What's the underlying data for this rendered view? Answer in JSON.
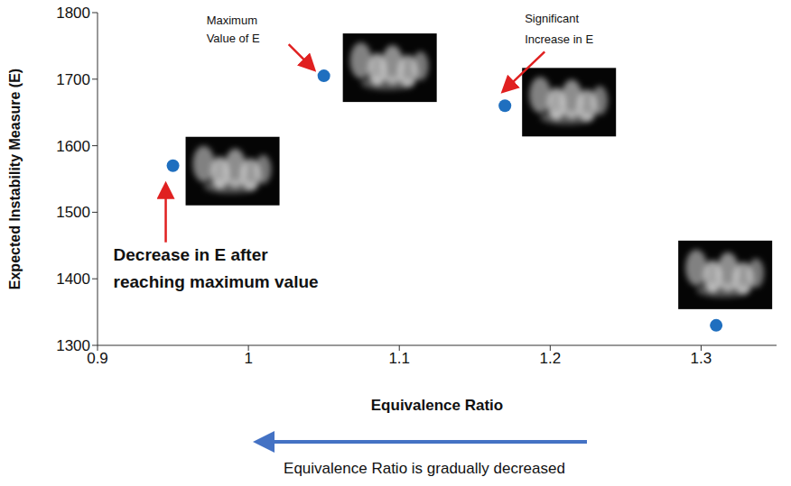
{
  "chart_data": {
    "type": "scatter",
    "x_label": "Equivalence Ratio",
    "y_label": "Expected Instability Measure (E)",
    "x": [
      0.95,
      1.05,
      1.17,
      1.31
    ],
    "values": [
      1570,
      1705,
      1660,
      1330
    ],
    "color": "#1f6fbf",
    "marker": "circle",
    "xlim": [
      0.9,
      1.35
    ],
    "xticks": [
      0.9,
      1,
      1.1,
      1.2,
      1.3
    ],
    "ylim": [
      1300,
      1800
    ],
    "yticks": [
      1300,
      1400,
      1500,
      1600,
      1700,
      1800
    ],
    "grid": false,
    "annotations": [
      {
        "text": "Maximum Value of E",
        "x": 1.05,
        "y": 1705
      },
      {
        "text": "Significant Increase in E",
        "x": 1.17,
        "y": 1660
      },
      {
        "text": "Decrease in E after reaching maximum value",
        "x": 0.95,
        "y": 1570
      }
    ],
    "caption": "Equivalence Ratio is gradually decreased"
  }
}
